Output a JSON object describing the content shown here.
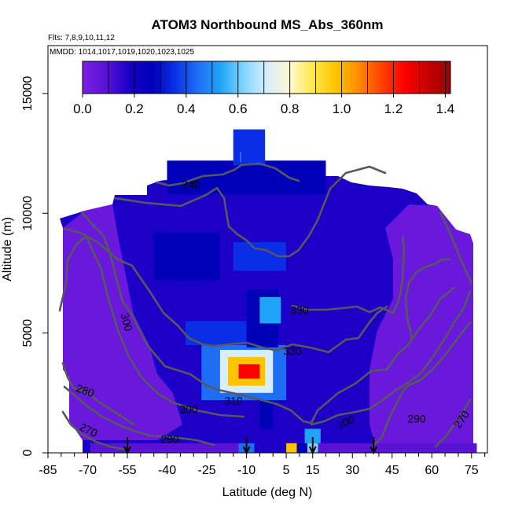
{
  "chart_data": {
    "type": "heatmap",
    "title": "ATOM3 Northbound MS_Abs_360nm",
    "annotations": [
      "Flts: 7,8,9,10,11,12",
      "MMDD: 1014,1017,1019,1020,1023,1025"
    ],
    "xlabel": "Latitude (deg N)",
    "ylabel": "Altitude (m)",
    "x_ticks": [
      -85,
      -70,
      -55,
      -40,
      -25,
      -10,
      5,
      15,
      30,
      45,
      60,
      75
    ],
    "x_minor_ticks": [
      -80,
      -75,
      -65,
      -60,
      -50,
      -45,
      -35,
      -30,
      -20,
      -15,
      -5,
      0,
      10,
      20,
      25,
      35,
      40,
      50,
      55,
      65,
      70,
      80
    ],
    "xlim": [
      -85,
      81
    ],
    "y_ticks": [
      0,
      5000,
      10000,
      15000
    ],
    "ylim": [
      0,
      17000
    ],
    "colorbar": {
      "ticks": [
        "0.0",
        "0.2",
        "0.4",
        "0.6",
        "0.8",
        "1.0",
        "1.2",
        "1.4"
      ],
      "range": [
        0,
        1.42
      ],
      "colors": [
        "#7b1fe3",
        "#5a12d6",
        "#1c00c8",
        "#0000b8",
        "#0a2ee6",
        "#1e6ef5",
        "#20a4f7",
        "#7fd4ff",
        "#d6eeff",
        "#fff8d0",
        "#ffe94a",
        "#ffc400",
        "#ff8c00",
        "#ff4000",
        "#ff0000",
        "#c80000",
        "#9a0000"
      ]
    },
    "cells": [
      {
        "x0": -69,
        "x1": -13,
        "y0": 0,
        "y1": 400,
        "v": 0.1
      },
      {
        "x0": -13,
        "x1": -7,
        "y0": 0,
        "y1": 400,
        "v": 0.4
      },
      {
        "x0": -7,
        "x1": 5,
        "y0": 0,
        "y1": 400,
        "v": 0.2
      },
      {
        "x0": 5,
        "x1": 9,
        "y0": 0,
        "y1": 400,
        "v": 1.0
      },
      {
        "x0": 9,
        "x1": 13,
        "y0": 0,
        "y1": 400,
        "v": 0.3
      },
      {
        "x0": 13,
        "x1": 17,
        "y0": 0,
        "y1": 400,
        "v": 0.6
      },
      {
        "x0": 17,
        "x1": 77,
        "y0": 0,
        "y1": 400,
        "v": 0.1
      },
      {
        "x0": 12,
        "x1": 18,
        "y0": 400,
        "y1": 1000,
        "v": 0.5
      },
      {
        "x0": -5,
        "x1": 0,
        "y0": 1000,
        "y1": 2200,
        "v": 0.25
      },
      {
        "x0": -27,
        "x1": 5,
        "y0": 2200,
        "y1": 4500,
        "v": 0.45
      },
      {
        "x0": -20,
        "x1": 0,
        "y0": 2500,
        "y1": 4300,
        "v": 0.75
      },
      {
        "x0": -17,
        "x1": -3,
        "y0": 2800,
        "y1": 4000,
        "v": 0.95
      },
      {
        "x0": -13,
        "x1": -5,
        "y0": 3100,
        "y1": 3700,
        "v": 1.2
      },
      {
        "x0": -33,
        "x1": -5,
        "y0": 4500,
        "y1": 5500,
        "v": 0.35
      },
      {
        "x0": -10,
        "x1": 2,
        "y0": 4400,
        "y1": 6800,
        "v": 0.3
      },
      {
        "x0": -5,
        "x1": 3,
        "y0": 5400,
        "y1": 6500,
        "v": 0.5
      },
      {
        "x0": -45,
        "x1": -20,
        "y0": 7200,
        "y1": 9200,
        "v": 0.3
      },
      {
        "x0": -15,
        "x1": 5,
        "y0": 7600,
        "y1": 8800,
        "v": 0.35
      },
      {
        "x0": -40,
        "x1": 20,
        "y0": 10800,
        "y1": 12200,
        "v": 0.25
      },
      {
        "x0": -15,
        "x1": -3,
        "y0": 12000,
        "y1": 13500,
        "v": 0.35
      }
    ],
    "contour_labels": [
      "340",
      "330",
      "320",
      "310",
      "300",
      "300",
      "300",
      "290",
      "290",
      "280",
      "270",
      "270"
    ],
    "arrows_at_latitude": [
      -55,
      -10,
      15,
      38
    ]
  }
}
